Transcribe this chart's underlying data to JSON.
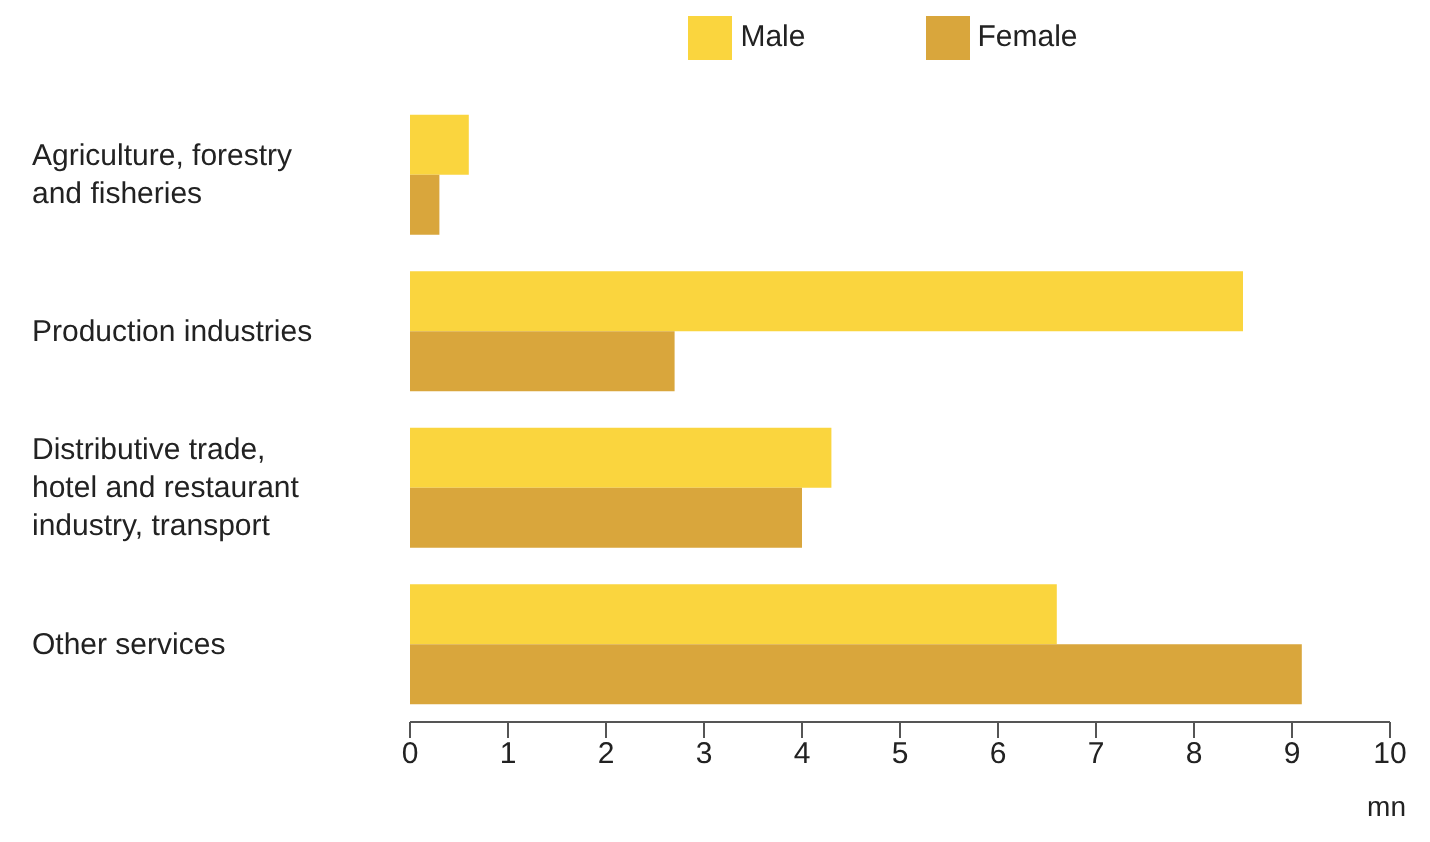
{
  "chart_data": {
    "type": "bar",
    "orientation": "horizontal",
    "categories": [
      "Agriculture, forestry and fisheries",
      "Production industries",
      "Distributive trade, hotel and restaurant industry, transport",
      "Other services"
    ],
    "series": [
      {
        "name": "Male",
        "color": "#fad53e",
        "values": [
          0.6,
          8.5,
          4.3,
          6.6
        ]
      },
      {
        "name": "Female",
        "color": "#d9a63c",
        "values": [
          0.3,
          2.7,
          4.0,
          9.1
        ]
      }
    ],
    "xlim": [
      0,
      10
    ],
    "xticks": [
      0,
      1,
      2,
      3,
      4,
      5,
      6,
      7,
      8,
      9,
      10
    ],
    "xlabel": "mn",
    "legend": "top",
    "grid": false
  }
}
